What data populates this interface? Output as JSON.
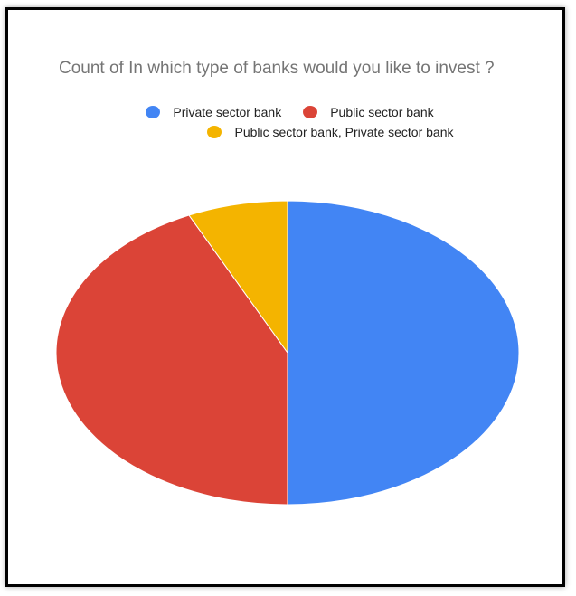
{
  "chart_data": {
    "type": "pie",
    "title": "Count of In which type of banks would you like to invest ?",
    "legend_position": "top",
    "labels": [
      "Private sector bank",
      "Public sector bank",
      "Public sector bank, Private sector bank"
    ],
    "values": [
      50,
      43,
      7
    ],
    "colors": [
      "#4285f4",
      "#db4437",
      "#f4b400"
    ],
    "start_angle_deg": 0,
    "direction": "clockwise"
  }
}
